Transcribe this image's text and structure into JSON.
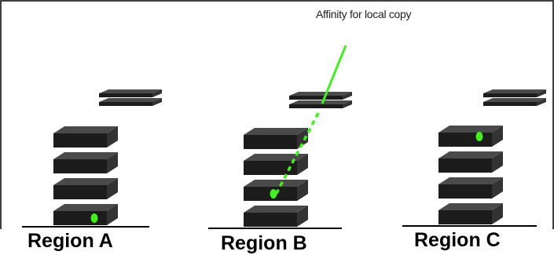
{
  "annotation": {
    "text": "Affinity for local copy"
  },
  "regions": [
    {
      "label": "Region A",
      "stack_units": 4,
      "copy_unit_index": 0
    },
    {
      "label": "Region B",
      "stack_units": 4,
      "copy_unit_index": 1
    },
    {
      "label": "Region C",
      "stack_units": 4,
      "copy_unit_index": 3
    }
  ],
  "colors": {
    "server_top": "#4a4a4a",
    "server_front": "#1c1c1c",
    "server_side": "#333333",
    "copy_dot": "#44ee22",
    "affinity_line": "#44ee22",
    "border": "#000000"
  }
}
